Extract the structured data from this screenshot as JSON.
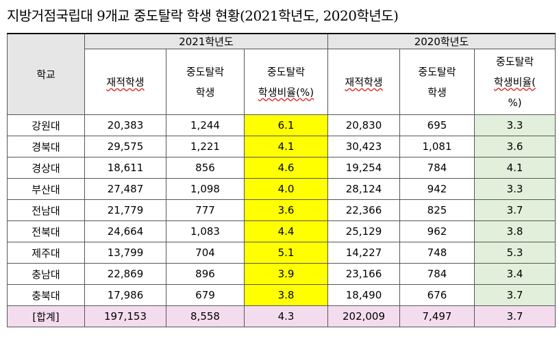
{
  "title": "지방거점국립대 9개교 중도탈락 학생 현황(2021학년도, 2020학년도)",
  "header": {
    "school": "학교",
    "year_2021": "2021학년도",
    "year_2020": "2020학년도",
    "enrolled": "재적학생",
    "dropout_line1": "중도탈락",
    "dropout_line2": "학생",
    "rate_2021_line1": "중도탈락",
    "rate_2021_line2": "학생비율(%)",
    "rate_2020_line1": "중도탈락",
    "rate_2020_line2": "학생비율(",
    "rate_2020_line3": "%)"
  },
  "rows": [
    {
      "school": "강원대",
      "e21": "20,383",
      "d21": "1,244",
      "r21": "6.1",
      "e20": "20,830",
      "d20": "695",
      "r20": "3.3"
    },
    {
      "school": "경북대",
      "e21": "29,575",
      "d21": "1,221",
      "r21": "4.1",
      "e20": "30,423",
      "d20": "1,081",
      "r20": "3.6"
    },
    {
      "school": "경상대",
      "e21": "18,611",
      "d21": "856",
      "r21": "4.6",
      "e20": "19,254",
      "d20": "784",
      "r20": "4.1"
    },
    {
      "school": "부산대",
      "e21": "27,487",
      "d21": "1,098",
      "r21": "4.0",
      "e20": "28,124",
      "d20": "942",
      "r20": "3.3"
    },
    {
      "school": "전남대",
      "e21": "21,779",
      "d21": "777",
      "r21": "3.6",
      "e20": "22,366",
      "d20": "825",
      "r20": "3.7"
    },
    {
      "school": "전북대",
      "e21": "24,664",
      "d21": "1,083",
      "r21": "4.4",
      "e20": "25,129",
      "d20": "962",
      "r20": "3.8"
    },
    {
      "school": "제주대",
      "e21": "13,799",
      "d21": "704",
      "r21": "5.1",
      "e20": "14,227",
      "d20": "748",
      "r20": "5.3"
    },
    {
      "school": "충남대",
      "e21": "22,869",
      "d21": "896",
      "r21": "3.9",
      "e20": "23,166",
      "d20": "784",
      "r20": "3.4"
    },
    {
      "school": "충북대",
      "e21": "17,986",
      "d21": "679",
      "r21": "3.8",
      "e20": "18,490",
      "d20": "676",
      "r20": "3.7"
    }
  ],
  "total": {
    "school": "[합계]",
    "e21": "197,153",
    "d21": "8,558",
    "r21": "4.3",
    "e20": "202,009",
    "d20": "7,497",
    "r20": "3.7"
  },
  "colors": {
    "highlight_2021": "#ffff00",
    "highlight_2020": "#e2efda",
    "total_row": "#f4dcef",
    "header": "#e6e6e6"
  }
}
